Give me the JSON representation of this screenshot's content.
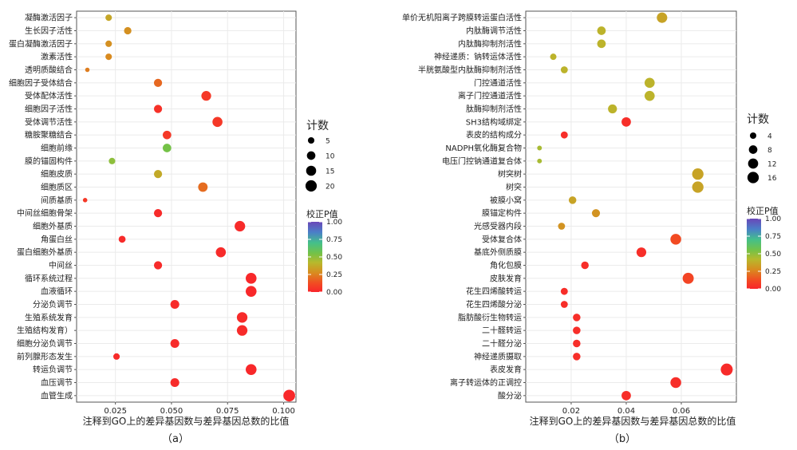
{
  "chart_data": [
    {
      "type": "scatter",
      "panel_label": "（a）",
      "xlabel": "注释到GO上的差异基因数与差异基因总数的比值",
      "xlim": [
        0.0077,
        0.1055
      ],
      "xticks": [
        "0.025",
        "0.050",
        "0.075",
        "0.100"
      ],
      "xtick_values": [
        0.025,
        0.05,
        0.075,
        0.1
      ],
      "size_legend": {
        "title": "计数",
        "values": [
          5,
          10,
          15,
          20
        ],
        "labels": [
          "5",
          "10",
          "15",
          "20"
        ],
        "range": [
          1,
          23
        ]
      },
      "color_legend": {
        "title": "校正P值",
        "values": [
          1.0,
          0.75,
          0.5,
          0.25,
          0.0
        ],
        "labels": [
          "1.00",
          "0.75",
          "0.50",
          "0.25",
          "0.00"
        ]
      },
      "points": [
        {
          "term": "凝酶激活因子",
          "ratio": 0.022,
          "count": 5,
          "padj": 0.36
        },
        {
          "term": "生长因子活性",
          "ratio": 0.0305,
          "count": 7,
          "padj": 0.29
        },
        {
          "term": "蛋白凝酶激活因子",
          "ratio": 0.022,
          "count": 5,
          "padj": 0.29
        },
        {
          "term": "激素活性",
          "ratio": 0.022,
          "count": 5,
          "padj": 0.27
        },
        {
          "term": "透明质酸结合",
          "ratio": 0.0125,
          "count": 2,
          "padj": 0.24
        },
        {
          "term": "细胞因子受体结合",
          "ratio": 0.044,
          "count": 9,
          "padj": 0.19
        },
        {
          "term": "受体配体活性",
          "ratio": 0.0655,
          "count": 14,
          "padj": 0.06
        },
        {
          "term": "细胞因子活性",
          "ratio": 0.044,
          "count": 9,
          "padj": 0.04
        },
        {
          "term": "受体调节活性",
          "ratio": 0.0705,
          "count": 15,
          "padj": 0.06
        },
        {
          "term": "糖胺聚糖结合",
          "ratio": 0.048,
          "count": 10,
          "padj": 0.06
        },
        {
          "term": "细胞前缘",
          "ratio": 0.048,
          "count": 10,
          "padj": 0.55
        },
        {
          "term": "膜的锚固构件",
          "ratio": 0.0235,
          "count": 5,
          "padj": 0.5
        },
        {
          "term": "细胞皮质",
          "ratio": 0.044,
          "count": 9,
          "padj": 0.37
        },
        {
          "term": "细胞质区",
          "ratio": 0.064,
          "count": 13,
          "padj": 0.2
        },
        {
          "term": "间质基质",
          "ratio": 0.0115,
          "count": 2,
          "padj": 0.06
        },
        {
          "term": "中间丝细胞骨架",
          "ratio": 0.044,
          "count": 9,
          "padj": 0.02
        },
        {
          "term": "细胞外基质",
          "ratio": 0.0805,
          "count": 17,
          "padj": 0.02
        },
        {
          "term": "角蛋白丝",
          "ratio": 0.028,
          "count": 6,
          "padj": 0.02
        },
        {
          "term": "蛋白细胞外基质",
          "ratio": 0.072,
          "count": 15,
          "padj": 0.02
        },
        {
          "term": "中间丝",
          "ratio": 0.044,
          "count": 9,
          "padj": 0.02
        },
        {
          "term": "循环系统过程",
          "ratio": 0.0855,
          "count": 18,
          "padj": 0.01
        },
        {
          "term": "血液循环",
          "ratio": 0.0855,
          "count": 18,
          "padj": 0.01
        },
        {
          "term": "分泌负调节",
          "ratio": 0.0515,
          "count": 11,
          "padj": 0.02
        },
        {
          "term": "生殖系统发育",
          "ratio": 0.0815,
          "count": 17,
          "padj": 0.02
        },
        {
          "term": "生殖结构发育）",
          "ratio": 0.0815,
          "count": 17,
          "padj": 0.02
        },
        {
          "term": "细胞分泌负调节",
          "ratio": 0.0515,
          "count": 11,
          "padj": 0.02
        },
        {
          "term": "前列腺形态发生",
          "ratio": 0.0255,
          "count": 5,
          "padj": 0.02
        },
        {
          "term": "转运负调节",
          "ratio": 0.0855,
          "count": 18,
          "padj": 0.01
        },
        {
          "term": "血压调节",
          "ratio": 0.0515,
          "count": 11,
          "padj": 0.02
        },
        {
          "term": "血管生成",
          "ratio": 0.1025,
          "count": 22,
          "padj": 0.01
        }
      ]
    },
    {
      "type": "scatter",
      "panel_label": "（b）",
      "xlabel": "注释到GO上的差异基因数与差异基因总数的比值",
      "xlim": [
        0.0035,
        0.08
      ],
      "xticks": [
        "0.02",
        "0.04",
        "0.06"
      ],
      "xtick_values": [
        0.02,
        0.04,
        0.06
      ],
      "size_legend": {
        "title": "计数",
        "values": [
          4,
          8,
          12,
          16
        ],
        "labels": [
          "4",
          "8",
          "12",
          "16"
        ],
        "range": [
          1,
          18
        ]
      },
      "color_legend": {
        "title": "校正P值",
        "values": [
          1.0,
          0.75,
          0.5,
          0.25,
          0.0
        ],
        "labels": [
          "1.00",
          "0.75",
          "0.50",
          "0.25",
          "0.00"
        ]
      },
      "points": [
        {
          "term": "单价无机阳离子跨膜转运蛋白活性",
          "ratio": 0.053,
          "count": 13,
          "padj": 0.35
        },
        {
          "term": "内肽酶调节活性",
          "ratio": 0.031,
          "count": 8,
          "padj": 0.4
        },
        {
          "term": "内肽酶抑制剂活性",
          "ratio": 0.031,
          "count": 8,
          "padj": 0.4
        },
        {
          "term": "神经递质：钠转运体活性",
          "ratio": 0.0135,
          "count": 4,
          "padj": 0.4
        },
        {
          "term": "半胱氨酸型内肽酶抑制剂活性",
          "ratio": 0.0175,
          "count": 5,
          "padj": 0.4
        },
        {
          "term": "门控通道活性",
          "ratio": 0.0485,
          "count": 12,
          "padj": 0.4
        },
        {
          "term": "离子门控通道活性",
          "ratio": 0.0485,
          "count": 12,
          "padj": 0.4
        },
        {
          "term": "肽酶抑制剂活性",
          "ratio": 0.035,
          "count": 9,
          "padj": 0.4
        },
        {
          "term": "SH3结构域绑定",
          "ratio": 0.04,
          "count": 10,
          "padj": 0.03
        },
        {
          "term": "表皮的结构成分",
          "ratio": 0.0175,
          "count": 5,
          "padj": 0.03
        },
        {
          "term": "NADPH氧化酶复合物",
          "ratio": 0.0085,
          "count": 2,
          "padj": 0.45
        },
        {
          "term": "电压门控钠通道复合体",
          "ratio": 0.0085,
          "count": 2,
          "padj": 0.45
        },
        {
          "term": "树突树",
          "ratio": 0.066,
          "count": 16,
          "padj": 0.35
        },
        {
          "term": "树突",
          "ratio": 0.066,
          "count": 16,
          "padj": 0.35
        },
        {
          "term": "被膜小窝",
          "ratio": 0.0205,
          "count": 6,
          "padj": 0.35
        },
        {
          "term": "膜锚定构件",
          "ratio": 0.029,
          "count": 7,
          "padj": 0.3
        },
        {
          "term": "光感受器内段",
          "ratio": 0.0165,
          "count": 5,
          "padj": 0.3
        },
        {
          "term": "受体复合体",
          "ratio": 0.058,
          "count": 14,
          "padj": 0.12
        },
        {
          "term": "基底外侧质膜",
          "ratio": 0.0455,
          "count": 11,
          "padj": 0.03
        },
        {
          "term": "角化包膜",
          "ratio": 0.025,
          "count": 6,
          "padj": 0.03
        },
        {
          "term": "皮肤发育",
          "ratio": 0.0625,
          "count": 15,
          "padj": 0.1
        },
        {
          "term": "花生四烯酸转运",
          "ratio": 0.0175,
          "count": 5,
          "padj": 0.03
        },
        {
          "term": "花生四烯酸分泌",
          "ratio": 0.0175,
          "count": 5,
          "padj": 0.03
        },
        {
          "term": "脂肪酸衍生物转运",
          "ratio": 0.022,
          "count": 6,
          "padj": 0.03
        },
        {
          "term": "二十醛转运",
          "ratio": 0.022,
          "count": 6,
          "padj": 0.03
        },
        {
          "term": "二十醛分泌",
          "ratio": 0.022,
          "count": 6,
          "padj": 0.03
        },
        {
          "term": "神经递质摄取",
          "ratio": 0.022,
          "count": 6,
          "padj": 0.03
        },
        {
          "term": "表皮发育",
          "ratio": 0.0765,
          "count": 18,
          "padj": 0.02
        },
        {
          "term": "离子转运体的正调控",
          "ratio": 0.058,
          "count": 14,
          "padj": 0.03
        },
        {
          "term": "酸分泌",
          "ratio": 0.04,
          "count": 10,
          "padj": 0.03
        }
      ]
    }
  ]
}
